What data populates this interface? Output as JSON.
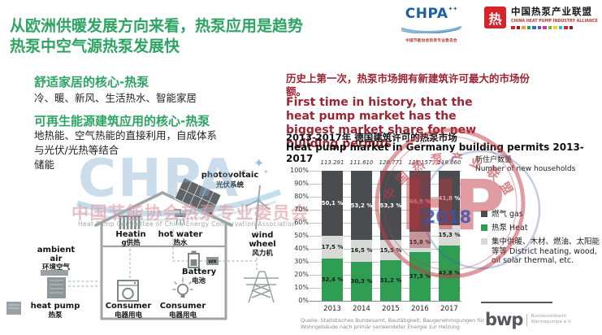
{
  "slide": {
    "title": "从欧洲供暖发展方向来看，热泵应用是趋势\n热泵中空气源热泵发展快"
  },
  "logos": {
    "chpa": {
      "wordmark": "CHPA",
      "stars": "✦✦",
      "subtext": "中国节能协会热泵专业委员会"
    },
    "alliance": {
      "mark": "热",
      "name": "中国热泵产业联盟",
      "subtitle": "CHINA HEAT PUMP INDUSTRY ALLIANCE",
      "palette": [
        "#D7232B",
        "#951B23",
        "#E8A33D",
        "#2F9E52",
        "#2173B5",
        "#7C4CA0",
        "#C23B93",
        "#76B82A",
        "#E8D41F",
        "#39B5C9",
        "#D7232B",
        "#951B23"
      ]
    }
  },
  "left_panel": {
    "heading1": "舒适家居的核心-热泵",
    "body1": "冷、暖、新风、生活热水、智能家居",
    "heading2": "可再生能源建筑应用的核心-热泵",
    "body2_lines": [
      "地热能、空气热能的直接利用，自成体系",
      "与光伏/光热等结合",
      "储能"
    ]
  },
  "right_panel": {
    "cn_text": "历史上第一次，热泵市场拥有新建筑许可最大的市场份额。",
    "en_text": "First time in history, that the heat pump market has the biggest market share for new building permits"
  },
  "chart_data": {
    "type": "bar",
    "stacked": true,
    "title_cn": "2013-2017年 德国建筑许可的热泵市场",
    "title_en": "Heat pump market in Germany building permits 2013-2017",
    "categories": [
      "2013",
      "2014",
      "2015",
      "2016",
      "2017"
    ],
    "totals": [
      "113.291",
      "111.610",
      "120.771",
      "125.157",
      "119.060"
    ],
    "totals_label_cn": "新住户数量",
    "totals_label_en": "Number of new households",
    "ylim": [
      0,
      100
    ],
    "y_tick_step": 10,
    "grid": true,
    "legend_position": "right",
    "series": [
      {
        "name": "热泵 Heat pump",
        "color": "#2F9E52",
        "label_color": "#1c1c1c",
        "values": [
          32.4,
          30.3,
          31.2,
          37.3,
          42.8
        ]
      },
      {
        "name": "集中供暖、木材、燃油、太阳能等等 District heating, wood, oil, solar thermal, etc.",
        "color": "#D8DAD8",
        "label_color": "#1c1c1c",
        "values": [
          17.5,
          16.5,
          15.5,
          15.8,
          15.3
        ]
      },
      {
        "name": "燃气 gas",
        "color": "#4A4D4F",
        "label_color": "#ffffff",
        "values": [
          50.1,
          53.2,
          53.3,
          46.9,
          41.8
        ]
      }
    ],
    "source": "Quelle: Statistisches Bundesamt, Bautätigkeit, Baugenehmigungen für Wohngebäude nach primär verwendeter Energie zur Heizung"
  },
  "legend": [
    {
      "label": "燃气 gas",
      "color": "#4A4D4F"
    },
    {
      "label": "热泵 Heat",
      "color": "#2F9E52"
    },
    {
      "label": "集中供暖、木材、燃油、太阳能等等 District heating, wood, oil solar thermal, etc.",
      "color": "#D8DAD8"
    }
  ],
  "house": {
    "photovoltaic_en": "photovoltaic",
    "photovoltaic_cn": "光伏系统",
    "heating_l1": "Heatin",
    "heating_l2": "g供热",
    "hot_water_en": "hot water",
    "hot_water_cn": "热水",
    "battery_en": "Battery",
    "battery_cn": "电池",
    "consumer_en": "Consumer",
    "consumer_cn": "电器用电",
    "ambient_l1": "ambient",
    "ambient_l2": "air",
    "ambient_cn": "环境空气",
    "heat_pump_en": "heat pump",
    "heat_pump_cn": "热泵",
    "wind_l1": "wind",
    "wind_l2": "wheel",
    "wind_cn": "风力机",
    "wr": "WR"
  },
  "watermarks": {
    "chpa": "CHPA",
    "star": "✦",
    "committee_cn": "中国节能协会热泵专业委员会",
    "committee_en": "Heat Pump Committee of China Energy Conservation Association",
    "seal_ring_text": "中国热泵产业联盟",
    "seal_monogram": "HP",
    "seal_year": "2018"
  },
  "footer": {
    "bwp": "bwp",
    "bwp_org_l1": "Bundesverband",
    "bwp_org_l2": "Wärmepumpe e.V."
  }
}
